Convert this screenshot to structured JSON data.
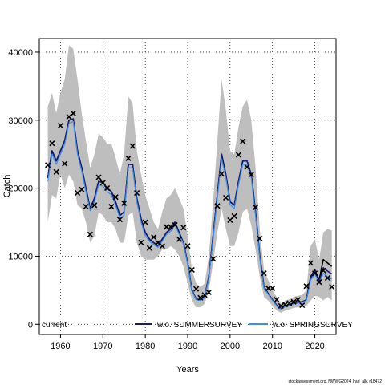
{
  "chart_data": {
    "type": "line",
    "xlabel": "Years",
    "ylabel": "Catch",
    "xlim": [
      1955,
      2025
    ],
    "ylim": [
      -1500,
      42000
    ],
    "xticks": [
      1960,
      1970,
      1980,
      1990,
      2000,
      2010,
      2020
    ],
    "yticks": [
      0,
      10000,
      20000,
      30000,
      40000
    ],
    "grid": true,
    "legend_position": "bottom",
    "colors": {
      "band": "#bebebe",
      "current": "#000000",
      "summer": "#191970",
      "spring": "#3a8fe8",
      "point": "#000000"
    },
    "x": [
      1957,
      1958,
      1959,
      1960,
      1961,
      1962,
      1963,
      1964,
      1965,
      1966,
      1967,
      1968,
      1969,
      1970,
      1971,
      1972,
      1973,
      1974,
      1975,
      1976,
      1977,
      1978,
      1979,
      1980,
      1981,
      1982,
      1983,
      1984,
      1985,
      1986,
      1987,
      1988,
      1989,
      1990,
      1991,
      1992,
      1993,
      1994,
      1995,
      1996,
      1997,
      1998,
      1999,
      2000,
      2001,
      2002,
      2003,
      2004,
      2005,
      2006,
      2007,
      2008,
      2009,
      2010,
      2011,
      2012,
      2013,
      2014,
      2015,
      2016,
      2017,
      2018,
      2019,
      2020,
      2021,
      2022,
      2023,
      2024
    ],
    "band_lower": [
      15000,
      19000,
      18500,
      22000,
      20000,
      22000,
      21000,
      17500,
      17000,
      15000,
      12000,
      13000,
      16500,
      16000,
      15000,
      15000,
      14000,
      12000,
      12000,
      16000,
      16500,
      12000,
      10000,
      9500,
      9500,
      9500,
      10000,
      11000,
      11000,
      11500,
      11000,
      10000,
      8500,
      6000,
      3500,
      2500,
      2500,
      3000,
      5000,
      9000,
      13500,
      17000,
      14000,
      11500,
      11500,
      13500,
      16500,
      17000,
      14500,
      11000,
      7000,
      4000,
      3500,
      2700,
      2000,
      1700,
      2000,
      2200,
      2400,
      2500,
      2600,
      2700,
      3500,
      4200,
      4000,
      3500,
      4000,
      3500
    ],
    "band_upper": [
      32000,
      34000,
      31000,
      34000,
      36000,
      41000,
      40500,
      36000,
      31000,
      27000,
      23000,
      25000,
      28000,
      27500,
      26500,
      26500,
      24500,
      22000,
      25000,
      33500,
      32500,
      25500,
      22000,
      19000,
      17000,
      15000,
      14000,
      16500,
      18500,
      19000,
      20000,
      18500,
      17000,
      13000,
      8000,
      6000,
      5500,
      6000,
      10000,
      18000,
      27000,
      36000,
      31500,
      25500,
      25000,
      29000,
      32000,
      33000,
      30000,
      23000,
      14000,
      8000,
      6500,
      5000,
      4000,
      3000,
      3500,
      3700,
      4000,
      4200,
      4300,
      5000,
      11500,
      12500,
      9500,
      13500,
      14000,
      13800
    ],
    "series": [
      {
        "name": "current",
        "values": [
          21500,
          25500,
          24000,
          25500,
          27000,
          30000,
          30200,
          25500,
          23000,
          20000,
          17000,
          18500,
          21000,
          20800,
          20000,
          19500,
          18000,
          16000,
          16500,
          23500,
          23500,
          18500,
          15500,
          13500,
          12500,
          12000,
          11500,
          12500,
          13500,
          14000,
          15000,
          13500,
          12000,
          9000,
          5000,
          3700,
          3600,
          4000,
          7000,
          13000,
          19000,
          25000,
          22000,
          18000,
          17500,
          21000,
          24000,
          24000,
          22000,
          16500,
          10000,
          5500,
          4500,
          3600,
          2800,
          2300,
          2700,
          2900,
          3100,
          3200,
          3300,
          3600,
          7000,
          8000,
          6500,
          9500,
          9000,
          8500
        ]
      },
      {
        "name": "w.o. SUMMERSURVEY",
        "values": [
          21500,
          25500,
          24000,
          25500,
          27000,
          30000,
          30200,
          25500,
          23000,
          20000,
          17000,
          18500,
          21000,
          20800,
          20000,
          19500,
          18000,
          16000,
          16500,
          23500,
          23500,
          18500,
          15500,
          13500,
          12500,
          12000,
          11500,
          12500,
          13500,
          14000,
          15000,
          13500,
          12000,
          9000,
          5000,
          3700,
          3600,
          4000,
          7000,
          13000,
          19000,
          25000,
          22000,
          18000,
          17500,
          21000,
          24000,
          24000,
          22000,
          16500,
          10000,
          5500,
          4500,
          3600,
          2800,
          2300,
          2700,
          2900,
          3100,
          3200,
          3300,
          3600,
          6800,
          7800,
          6300,
          8300,
          7800,
          7400
        ]
      },
      {
        "name": "w.o. SPRINGSURVEY",
        "values": [
          21000,
          25000,
          23500,
          25000,
          26500,
          29500,
          29800,
          25000,
          22500,
          19500,
          16700,
          18000,
          20500,
          20300,
          19500,
          19000,
          17500,
          15600,
          16000,
          23000,
          23000,
          18000,
          15000,
          13000,
          12200,
          11700,
          11300,
          12200,
          13200,
          13700,
          14600,
          13200,
          11800,
          8800,
          4900,
          3600,
          3500,
          3900,
          6800,
          12600,
          18500,
          24300,
          21500,
          17600,
          17000,
          20500,
          23500,
          23500,
          21500,
          16000,
          9700,
          5300,
          4400,
          3500,
          2700,
          2200,
          2600,
          2800,
          3000,
          3100,
          3200,
          3500,
          6500,
          7400,
          6000,
          7500,
          7000,
          6600
        ]
      }
    ],
    "observed": [
      {
        "x": 1957,
        "y": 23400
      },
      {
        "x": 1958,
        "y": 26600
      },
      {
        "x": 1959,
        "y": 22400
      },
      {
        "x": 1960,
        "y": 29200
      },
      {
        "x": 1961,
        "y": 23600
      },
      {
        "x": 1962,
        "y": 30500
      },
      {
        "x": 1963,
        "y": 31000
      },
      {
        "x": 1964,
        "y": 19300
      },
      {
        "x": 1965,
        "y": 19800
      },
      {
        "x": 1966,
        "y": 17300
      },
      {
        "x": 1967,
        "y": 13200
      },
      {
        "x": 1968,
        "y": 17500
      },
      {
        "x": 1969,
        "y": 21600
      },
      {
        "x": 1970,
        "y": 20800
      },
      {
        "x": 1971,
        "y": 20000
      },
      {
        "x": 1972,
        "y": 17300
      },
      {
        "x": 1973,
        "y": 18700
      },
      {
        "x": 1974,
        "y": 15400
      },
      {
        "x": 1975,
        "y": 17800
      },
      {
        "x": 1976,
        "y": 24400
      },
      {
        "x": 1977,
        "y": 26200
      },
      {
        "x": 1978,
        "y": 19300
      },
      {
        "x": 1979,
        "y": 12000
      },
      {
        "x": 1980,
        "y": 15000
      },
      {
        "x": 1981,
        "y": 11200
      },
      {
        "x": 1982,
        "y": 12800
      },
      {
        "x": 1983,
        "y": 12000
      },
      {
        "x": 1984,
        "y": 11500
      },
      {
        "x": 1985,
        "y": 14300
      },
      {
        "x": 1986,
        "y": 14300
      },
      {
        "x": 1987,
        "y": 14600
      },
      {
        "x": 1988,
        "y": 12500
      },
      {
        "x": 1989,
        "y": 14200
      },
      {
        "x": 1990,
        "y": 11500
      },
      {
        "x": 1991,
        "y": 8000
      },
      {
        "x": 1992,
        "y": 5200
      },
      {
        "x": 1993,
        "y": 3900
      },
      {
        "x": 1994,
        "y": 4300
      },
      {
        "x": 1995,
        "y": 4700
      },
      {
        "x": 1996,
        "y": 9600
      },
      {
        "x": 1997,
        "y": 17400
      },
      {
        "x": 1998,
        "y": 22100
      },
      {
        "x": 1999,
        "y": 18600
      },
      {
        "x": 2000,
        "y": 15300
      },
      {
        "x": 2001,
        "y": 15900
      },
      {
        "x": 2002,
        "y": 24900
      },
      {
        "x": 2003,
        "y": 26900
      },
      {
        "x": 2004,
        "y": 23100
      },
      {
        "x": 2005,
        "y": 22000
      },
      {
        "x": 2006,
        "y": 17200
      },
      {
        "x": 2007,
        "y": 12600
      },
      {
        "x": 2008,
        "y": 7500
      },
      {
        "x": 2009,
        "y": 5300
      },
      {
        "x": 2010,
        "y": 5300
      },
      {
        "x": 2011,
        "y": 3600
      },
      {
        "x": 2012,
        "y": 2700
      },
      {
        "x": 2013,
        "y": 2900
      },
      {
        "x": 2014,
        "y": 3100
      },
      {
        "x": 2015,
        "y": 3300
      },
      {
        "x": 2016,
        "y": 3600
      },
      {
        "x": 2017,
        "y": 2800
      },
      {
        "x": 2018,
        "y": 5600
      },
      {
        "x": 2019,
        "y": 9000
      },
      {
        "x": 2020,
        "y": 7500
      },
      {
        "x": 2021,
        "y": 6200
      },
      {
        "x": 2022,
        "y": 7900
      },
      {
        "x": 2023,
        "y": 6800
      },
      {
        "x": 2024,
        "y": 5500
      }
    ]
  },
  "footer": "stockassessment.org, NWWG2024_had_alk, r18472"
}
